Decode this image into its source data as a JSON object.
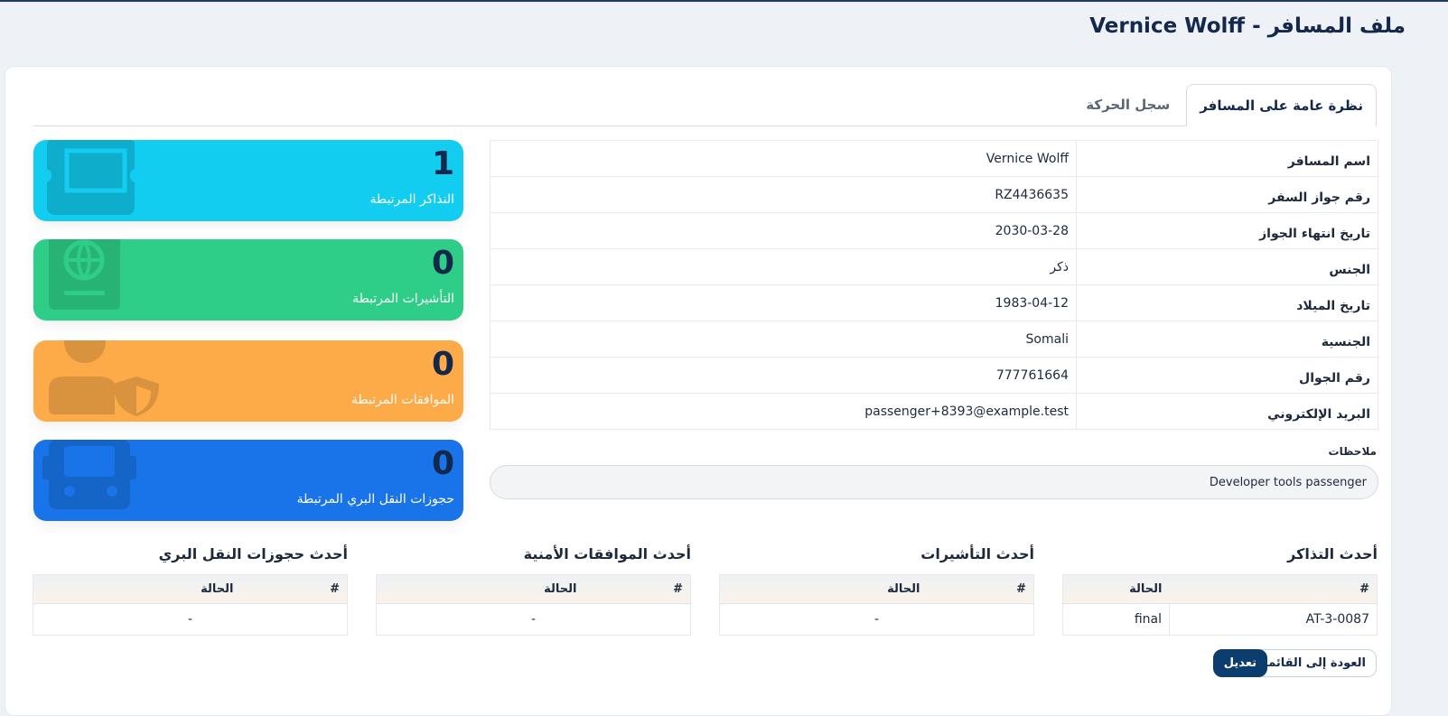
{
  "title": "ملف المسافر - Vernice Wolff",
  "tabs": [
    "نظرة عامة على المسافر",
    "سجل الحركة"
  ],
  "info": [
    {
      "k": "اسم المسافر",
      "v": "Vernice Wolff"
    },
    {
      "k": "رقم جواز السفر",
      "v": "RZ4436635"
    },
    {
      "k": "تاريخ انتهاء الجواز",
      "v": "2030-03-28"
    },
    {
      "k": "الجنس",
      "v": "ذكر"
    },
    {
      "k": "تاريخ الميلاد",
      "v": "1983-04-12"
    },
    {
      "k": "الجنسية",
      "v": "Somali"
    },
    {
      "k": "رقم الجوال",
      "v": "777761664"
    },
    {
      "k": "البريد الإلكتروني",
      "v": "passenger+8393@example.test"
    }
  ],
  "notes": {
    "label": "ملاحظات",
    "value": "Developer tools passenger"
  },
  "stats": [
    {
      "n": "1",
      "label": "التذاكر المرتبطة",
      "color": "#13cdf0",
      "icon": "ticket-icon"
    },
    {
      "n": "0",
      "label": "التأشيرات المرتبطة",
      "color": "#2ecd88",
      "icon": "passport-icon"
    },
    {
      "n": "0",
      "label": "الموافقات المرتبطة",
      "color": "#fdaa48",
      "icon": "user-shield-icon"
    },
    {
      "n": "0",
      "label": "حجوزات النقل البري المرتبطة",
      "color": "#1874e8",
      "icon": "bus-icon"
    }
  ],
  "sections": [
    {
      "title": "أحدث التذاكر",
      "cols": [
        "#",
        "الحالة"
      ],
      "rows": [
        [
          "AT-3-0087",
          "final"
        ]
      ]
    },
    {
      "title": "أحدث التأشيرات",
      "cols": [
        "#",
        "الحالة"
      ],
      "empty": "-"
    },
    {
      "title": "أحدث الموافقات الأمنية",
      "cols": [
        "#",
        "الحالة"
      ],
      "empty": "-"
    },
    {
      "title": "أحدث حجوزات النقل البري",
      "cols": [
        "#",
        "الحالة"
      ],
      "empty": "-"
    }
  ],
  "buttons": {
    "back": "العودة إلى القائمة",
    "edit": "تعديل"
  }
}
